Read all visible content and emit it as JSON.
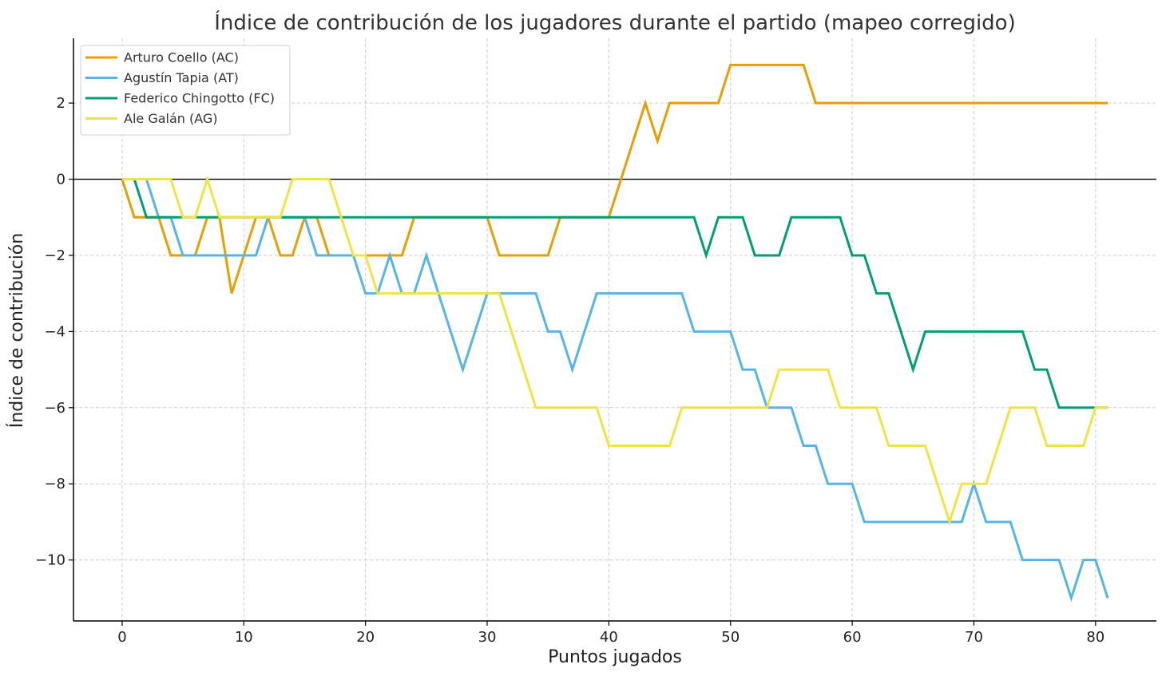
{
  "chart_data": {
    "type": "line",
    "title": "Índice de contribución de los jugadores durante el partido (mapeo corregido)",
    "xlabel": "Puntos jugados",
    "ylabel": "Índice de contribución",
    "xlim": [
      -4,
      85
    ],
    "ylim": [
      -11.6,
      3.7
    ],
    "xticks": [
      0,
      10,
      20,
      30,
      40,
      50,
      60,
      70,
      80
    ],
    "yticks": [
      2,
      0,
      -2,
      -4,
      -6,
      -8,
      -10
    ],
    "ytick_labels": [
      "2",
      "0",
      "−2",
      "−4",
      "−6",
      "−8",
      "−10"
    ],
    "grid": true,
    "zero_line": true,
    "legend_position": "top-left",
    "series": [
      {
        "name": "Arturo Coello (AC)",
        "color": "#E69F00",
        "values": [
          0,
          -1,
          -1,
          -1,
          -2,
          -2,
          -2,
          -1,
          -1,
          -3,
          -2,
          -1,
          -1,
          -2,
          -2,
          -1,
          -1,
          -2,
          -2,
          -2,
          -2,
          -2,
          -2,
          -2,
          -1,
          -1,
          -1,
          -1,
          -1,
          -1,
          -1,
          -2,
          -2,
          -2,
          -2,
          -2,
          -1,
          -1,
          -1,
          -1,
          -1,
          0,
          1,
          2,
          1,
          2,
          2,
          2,
          2,
          2,
          3,
          3,
          3,
          3,
          3,
          3,
          3,
          2,
          2,
          2,
          2,
          2,
          2,
          2,
          2,
          2,
          2,
          2,
          2,
          2,
          2,
          2,
          2,
          2,
          2,
          2,
          2,
          2,
          2,
          2,
          2,
          2
        ]
      },
      {
        "name": "Agustín Tapia (AT)",
        "color": "#56B4E9",
        "values": [
          0,
          0,
          0,
          -1,
          -1,
          -2,
          -2,
          -2,
          -2,
          -2,
          -2,
          -2,
          -1,
          -1,
          -1,
          -1,
          -2,
          -2,
          -2,
          -2,
          -3,
          -3,
          -2,
          -3,
          -3,
          -2,
          -3,
          -4,
          -5,
          -4,
          -3,
          -3,
          -3,
          -3,
          -3,
          -4,
          -4,
          -5,
          -4,
          -3,
          -3,
          -3,
          -3,
          -3,
          -3,
          -3,
          -3,
          -4,
          -4,
          -4,
          -4,
          -5,
          -5,
          -6,
          -6,
          -6,
          -7,
          -7,
          -8,
          -8,
          -8,
          -9,
          -9,
          -9,
          -9,
          -9,
          -9,
          -9,
          -9,
          -9,
          -8,
          -9,
          -9,
          -9,
          -10,
          -10,
          -10,
          -10,
          -11,
          -10,
          -10,
          -11
        ]
      },
      {
        "name": "Federico Chingotto (FC)",
        "color": "#009E73",
        "values": [
          0,
          0,
          -1,
          -1,
          -1,
          -1,
          -1,
          -1,
          -1,
          -1,
          -1,
          -1,
          -1,
          -1,
          -1,
          -1,
          -1,
          -1,
          -1,
          -1,
          -1,
          -1,
          -1,
          -1,
          -1,
          -1,
          -1,
          -1,
          -1,
          -1,
          -1,
          -1,
          -1,
          -1,
          -1,
          -1,
          -1,
          -1,
          -1,
          -1,
          -1,
          -1,
          -1,
          -1,
          -1,
          -1,
          -1,
          -1,
          -2,
          -1,
          -1,
          -1,
          -2,
          -2,
          -2,
          -1,
          -1,
          -1,
          -1,
          -1,
          -2,
          -2,
          -3,
          -3,
          -4,
          -5,
          -4,
          -4,
          -4,
          -4,
          -4,
          -4,
          -4,
          -4,
          -4,
          -5,
          -5,
          -6,
          -6,
          -6,
          -6,
          -6
        ]
      },
      {
        "name": "Ale Galán (AG)",
        "color": "#F0E442",
        "values": [
          0,
          0,
          0,
          0,
          0,
          -1,
          -1,
          0,
          -1,
          -1,
          -1,
          -1,
          -1,
          -1,
          0,
          0,
          0,
          0,
          -1,
          -2,
          -2,
          -3,
          -3,
          -3,
          -3,
          -3,
          -3,
          -3,
          -3,
          -3,
          -3,
          -3,
          -4,
          -5,
          -6,
          -6,
          -6,
          -6,
          -6,
          -6,
          -7,
          -7,
          -7,
          -7,
          -7,
          -7,
          -6,
          -6,
          -6,
          -6,
          -6,
          -6,
          -6,
          -6,
          -5,
          -5,
          -5,
          -5,
          -5,
          -6,
          -6,
          -6,
          -6,
          -7,
          -7,
          -7,
          -7,
          -8,
          -9,
          -8,
          -8,
          -8,
          -7,
          -6,
          -6,
          -6,
          -7,
          -7,
          -7,
          -7,
          -6,
          -6
        ]
      }
    ]
  }
}
